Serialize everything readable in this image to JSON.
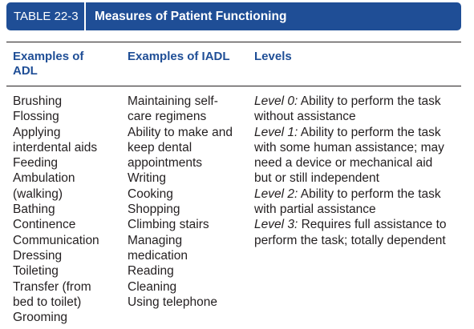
{
  "table": {
    "number": "TABLE 22-3",
    "title": "Measures of Patient Functioning"
  },
  "headers": {
    "adl": [
      "Examples of",
      "ADL"
    ],
    "iadl": "Examples of IADL",
    "levels": "Levels"
  },
  "adl_lines": [
    "Brushing",
    "Flossing",
    "Applying",
    "interdental aids",
    "Feeding",
    "Ambulation",
    "(walking)",
    "Bathing",
    "Continence",
    "Communication",
    "Dressing",
    "Toileting",
    "Transfer (from",
    "bed to toilet)",
    "Grooming"
  ],
  "iadl_lines": [
    "Maintaining self-",
    "care regimens",
    "Ability to make and",
    "keep dental",
    "appointments",
    "Writing",
    "Cooking",
    "Shopping",
    "Climbing stairs",
    "Managing",
    "medication",
    "Reading",
    "Cleaning",
    "Using telephone"
  ],
  "levels": [
    {
      "name": "Level 0:",
      "lines": [
        " Ability to perform the task",
        "without assistance"
      ]
    },
    {
      "name": "Level 1:",
      "lines": [
        " Ability to perform the task",
        "with some human assistance; may",
        "need a device or mechanical aid",
        "but or still independent"
      ]
    },
    {
      "name": "Level 2:",
      "lines": [
        " Ability to perform the task",
        "with partial assistance"
      ]
    },
    {
      "name": "Level 3:",
      "lines": [
        " Requires full assistance to",
        "perform the task; totally dependent"
      ]
    }
  ],
  "colors": {
    "title_bar": "#1f4e96",
    "header_text": "#1f4e96",
    "body_text": "#231f20"
  }
}
